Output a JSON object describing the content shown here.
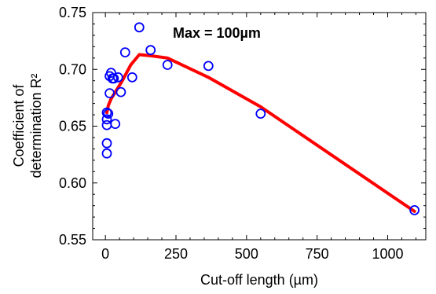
{
  "chart_data": {
    "type": "scatter",
    "xlabel": "Cut-off length (µm)",
    "ylabel_lines": [
      "Coefficient of",
      "determination R²"
    ],
    "annotation": "Max = 100µm",
    "xlim": [
      -45,
      1135
    ],
    "ylim": [
      0.55,
      0.75
    ],
    "x_ticks": [
      0,
      250,
      500,
      750,
      1000
    ],
    "y_ticks": [
      0.55,
      0.6,
      0.65,
      0.7,
      0.75
    ],
    "y_tick_labels": [
      "0.55",
      "0.60",
      "0.65",
      "0.70",
      "0.75"
    ],
    "grid": false,
    "series": [
      {
        "type": "scatter",
        "color": "#0000ff",
        "marker": "open-circle",
        "points": [
          [
            5,
            0.626
          ],
          [
            5,
            0.635
          ],
          [
            5,
            0.651
          ],
          [
            5,
            0.656
          ],
          [
            5,
            0.662
          ],
          [
            10,
            0.661
          ],
          [
            15,
            0.694
          ],
          [
            15,
            0.679
          ],
          [
            20,
            0.697
          ],
          [
            25,
            0.692
          ],
          [
            30,
            0.692
          ],
          [
            35,
            0.652
          ],
          [
            45,
            0.693
          ],
          [
            55,
            0.68
          ],
          [
            70,
            0.715
          ],
          [
            95,
            0.693
          ],
          [
            120,
            0.737
          ],
          [
            160,
            0.717
          ],
          [
            220,
            0.704
          ],
          [
            365,
            0.703
          ],
          [
            550,
            0.661
          ],
          [
            1095,
            0.576
          ]
        ]
      },
      {
        "type": "line",
        "color": "#ff0000",
        "points": [
          [
            5,
            0.662
          ],
          [
            10,
            0.668
          ],
          [
            20,
            0.674
          ],
          [
            40,
            0.682
          ],
          [
            60,
            0.69
          ],
          [
            90,
            0.704
          ],
          [
            120,
            0.713
          ],
          [
            160,
            0.712
          ],
          [
            220,
            0.71
          ],
          [
            365,
            0.693
          ],
          [
            550,
            0.667
          ],
          [
            1095,
            0.575
          ]
        ]
      }
    ]
  }
}
